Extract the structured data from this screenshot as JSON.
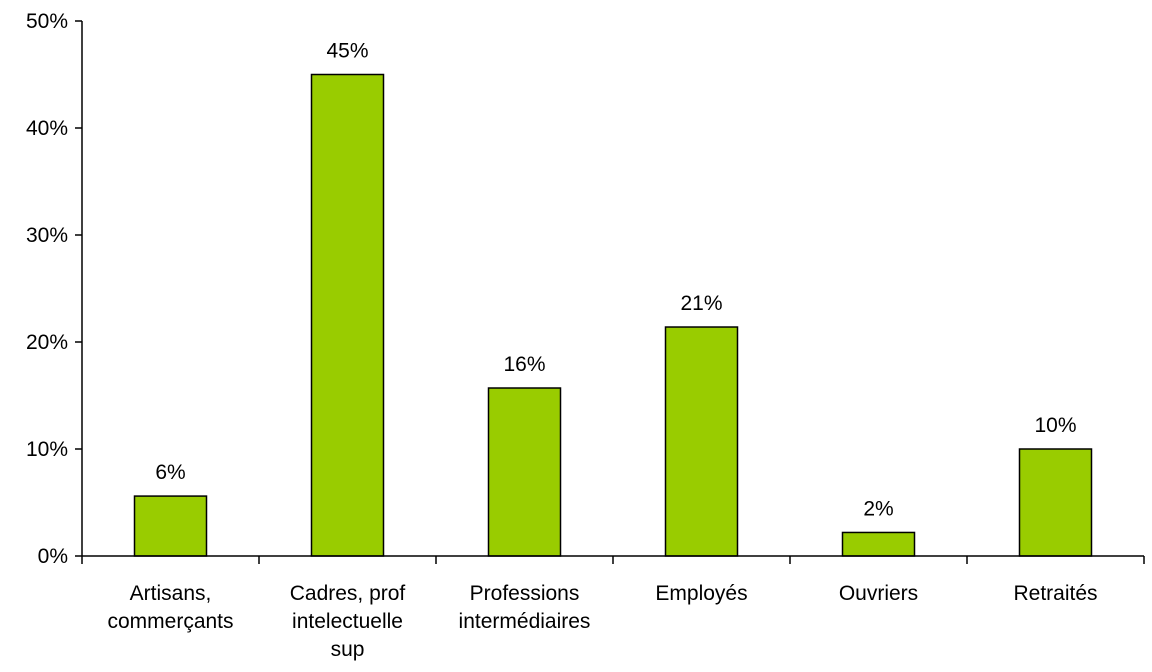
{
  "chart_data": {
    "type": "bar",
    "categories": [
      [
        "Artisans,",
        "commerçants"
      ],
      [
        "Cadres, prof",
        "intelectuelle",
        "sup"
      ],
      [
        "Professions",
        "intermédiaires"
      ],
      [
        "Employés"
      ],
      [
        "Ouvriers"
      ],
      [
        "Retraités"
      ]
    ],
    "values": [
      5.6,
      45.0,
      15.7,
      21.4,
      2.2,
      10.0
    ],
    "data_labels": [
      "6%",
      "45%",
      "16%",
      "21%",
      "2%",
      "10%"
    ],
    "title": "",
    "xlabel": "",
    "ylabel": "",
    "ylim": [
      0,
      50
    ],
    "yticks": [
      0,
      10,
      20,
      30,
      40,
      50
    ],
    "ytick_labels": [
      "0%",
      "10%",
      "20%",
      "30%",
      "40%",
      "50%"
    ],
    "grid": false,
    "bar_color": "#99cc00",
    "bar_edge_color": "#000000"
  }
}
